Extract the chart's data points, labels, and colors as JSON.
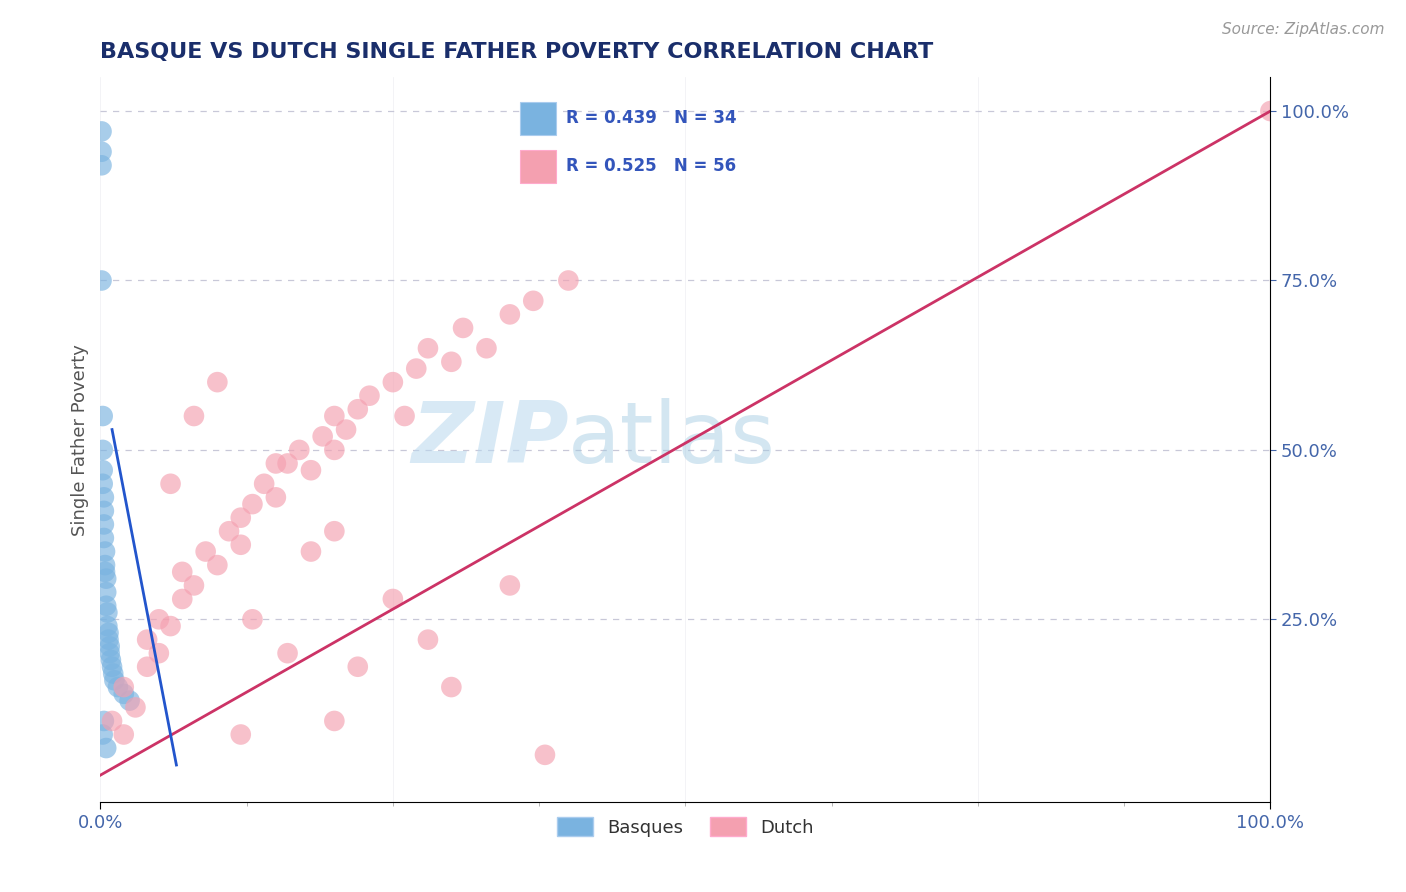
{
  "title": "BASQUE VS DUTCH SINGLE FATHER POVERTY CORRELATION CHART",
  "source_text": "Source: ZipAtlas.com",
  "ylabel": "Single Father Poverty",
  "basque_color": "#7ab3e0",
  "dutch_color": "#f4a0b0",
  "basque_line_color": "#2255cc",
  "dutch_line_color": "#cc3366",
  "background_color": "#ffffff",
  "grid_color": "#c8c8d8",
  "title_color": "#1a2e6b",
  "axis_tick_color": "#4466aa",
  "watermark_zip": "ZIP",
  "watermark_atlas": "atlas",
  "legend_r1": "R = 0.439",
  "legend_n1": "N = 34",
  "legend_r2": "R = 0.525",
  "legend_n2": "N = 56",
  "basque_x": [
    0.001,
    0.001,
    0.001,
    0.002,
    0.002,
    0.002,
    0.002,
    0.003,
    0.003,
    0.003,
    0.003,
    0.004,
    0.004,
    0.004,
    0.005,
    0.005,
    0.005,
    0.006,
    0.006,
    0.007,
    0.007,
    0.008,
    0.008,
    0.009,
    0.01,
    0.011,
    0.012,
    0.015,
    0.02,
    0.025,
    0.003,
    0.002,
    0.005,
    0.001
  ],
  "basque_y": [
    0.97,
    0.94,
    0.92,
    0.55,
    0.5,
    0.47,
    0.45,
    0.43,
    0.41,
    0.39,
    0.37,
    0.35,
    0.33,
    0.32,
    0.31,
    0.29,
    0.27,
    0.26,
    0.24,
    0.23,
    0.22,
    0.21,
    0.2,
    0.19,
    0.18,
    0.17,
    0.16,
    0.15,
    0.14,
    0.13,
    0.1,
    0.08,
    0.06,
    0.75
  ],
  "dutch_x": [
    0.01,
    0.02,
    0.02,
    0.03,
    0.04,
    0.04,
    0.05,
    0.05,
    0.06,
    0.07,
    0.07,
    0.08,
    0.09,
    0.1,
    0.11,
    0.12,
    0.12,
    0.13,
    0.14,
    0.15,
    0.16,
    0.17,
    0.18,
    0.19,
    0.2,
    0.2,
    0.21,
    0.22,
    0.23,
    0.25,
    0.26,
    0.27,
    0.28,
    0.3,
    0.31,
    0.33,
    0.35,
    0.37,
    0.4,
    0.35,
    0.1,
    0.15,
    0.2,
    0.08,
    0.06,
    0.25,
    0.28,
    0.18,
    0.22,
    0.3,
    0.13,
    0.16,
    0.2,
    0.12,
    0.38,
    1.0
  ],
  "dutch_y": [
    0.1,
    0.08,
    0.15,
    0.12,
    0.18,
    0.22,
    0.2,
    0.25,
    0.24,
    0.28,
    0.32,
    0.3,
    0.35,
    0.33,
    0.38,
    0.36,
    0.4,
    0.42,
    0.45,
    0.43,
    0.48,
    0.5,
    0.47,
    0.52,
    0.55,
    0.5,
    0.53,
    0.56,
    0.58,
    0.6,
    0.55,
    0.62,
    0.65,
    0.63,
    0.68,
    0.65,
    0.7,
    0.72,
    0.75,
    0.3,
    0.6,
    0.48,
    0.38,
    0.55,
    0.45,
    0.28,
    0.22,
    0.35,
    0.18,
    0.15,
    0.25,
    0.2,
    0.1,
    0.08,
    0.05,
    1.0
  ],
  "basque_line_x": [
    0.0,
    0.08
  ],
  "basque_line_y_intercept": 0.62,
  "basque_line_slope": -9.0,
  "dutch_line_x": [
    0.0,
    1.0
  ],
  "dutch_line_y": [
    0.02,
    1.0
  ],
  "xlim": [
    0.0,
    1.0
  ],
  "ylim": [
    -0.02,
    1.05
  ]
}
